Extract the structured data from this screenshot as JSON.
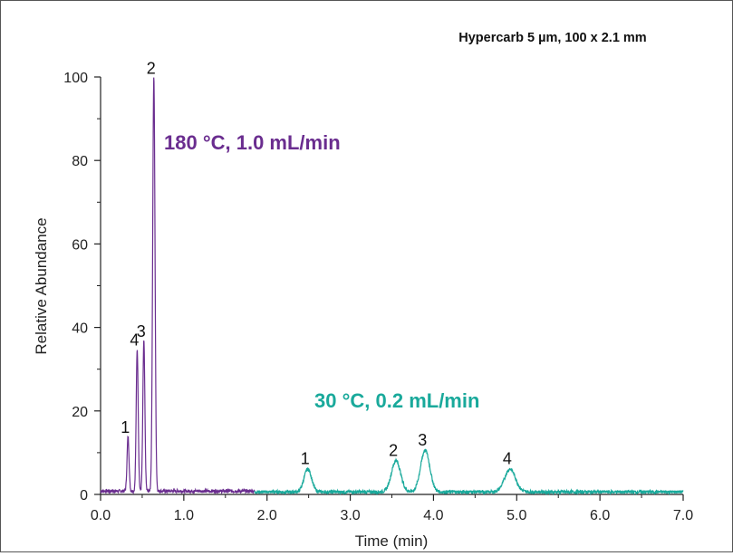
{
  "chart_data": {
    "type": "line",
    "title": "",
    "annotation_column": "Hypercarb 5 µm, 100 x 2.1 mm",
    "xlabel": "Time (min)",
    "ylabel": "Relative Abundance",
    "xlim": [
      0.0,
      7.0
    ],
    "ylim": [
      0,
      100
    ],
    "x_ticks": [
      "0.0",
      "1.0",
      "2.0",
      "3.0",
      "4.0",
      "5.0",
      "6.0",
      "7.0"
    ],
    "y_ticks": [
      "0",
      "20",
      "40",
      "60",
      "80",
      "100"
    ],
    "grid": false,
    "series": [
      {
        "name": "180 °C, 1.0 mL/min",
        "color": "#6a2d8f",
        "x_range": [
          0.0,
          1.85
        ],
        "baseline": 0.8,
        "peaks": [
          {
            "label": "1",
            "x": 0.33,
            "y": 13,
            "width": 0.012
          },
          {
            "label": "4",
            "x": 0.44,
            "y": 34,
            "width": 0.012
          },
          {
            "label": "3",
            "x": 0.52,
            "y": 36,
            "width": 0.012
          },
          {
            "label": "2",
            "x": 0.64,
            "y": 99,
            "width": 0.014
          }
        ]
      },
      {
        "name": "30 °C, 0.2 mL/min",
        "color": "#19a99b",
        "x_range": [
          1.85,
          7.0
        ],
        "baseline": 0.6,
        "peaks": [
          {
            "label": "1",
            "x": 2.49,
            "y": 5.5,
            "width": 0.045
          },
          {
            "label": "2",
            "x": 3.55,
            "y": 7.5,
            "width": 0.055
          },
          {
            "label": "3",
            "x": 3.9,
            "y": 10,
            "width": 0.055
          },
          {
            "label": "4",
            "x": 4.92,
            "y": 5.5,
            "width": 0.065
          }
        ]
      }
    ]
  }
}
